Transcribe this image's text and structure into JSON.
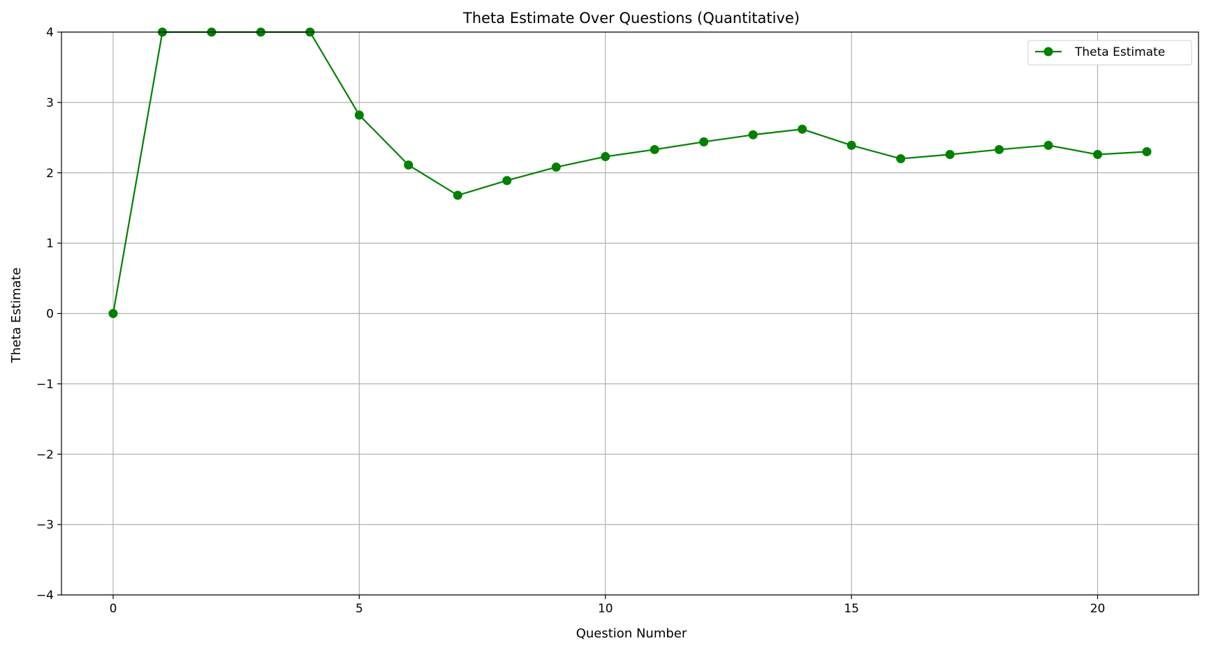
{
  "chart_data": {
    "type": "line",
    "title": "Theta Estimate Over Questions (Quantitative)",
    "xlabel": "Question Number",
    "ylabel": "Theta Estimate",
    "xlim": [
      -1.05,
      22.05
    ],
    "ylim": [
      -4,
      4
    ],
    "xticks": [
      0,
      5,
      10,
      15,
      20
    ],
    "yticks": [
      -4,
      -3,
      -2,
      -1,
      0,
      1,
      2,
      3,
      4
    ],
    "ytick_labels": [
      "−4",
      "−3",
      "−2",
      "−1",
      "0",
      "1",
      "2",
      "3",
      "4"
    ],
    "grid": true,
    "legend_position": "upper-right",
    "series": [
      {
        "name": "Theta Estimate",
        "color": "#008000",
        "marker": "circle",
        "x": [
          0,
          1,
          2,
          3,
          4,
          5,
          6,
          7,
          8,
          9,
          10,
          11,
          12,
          13,
          14,
          15,
          16,
          17,
          18,
          19,
          20,
          21
        ],
        "y": [
          0,
          4.0,
          4.0,
          4.0,
          4.0,
          2.82,
          2.11,
          1.68,
          1.89,
          2.08,
          2.23,
          2.33,
          2.44,
          2.54,
          2.62,
          2.39,
          2.2,
          2.26,
          2.33,
          2.39,
          2.26,
          2.3
        ]
      }
    ]
  }
}
